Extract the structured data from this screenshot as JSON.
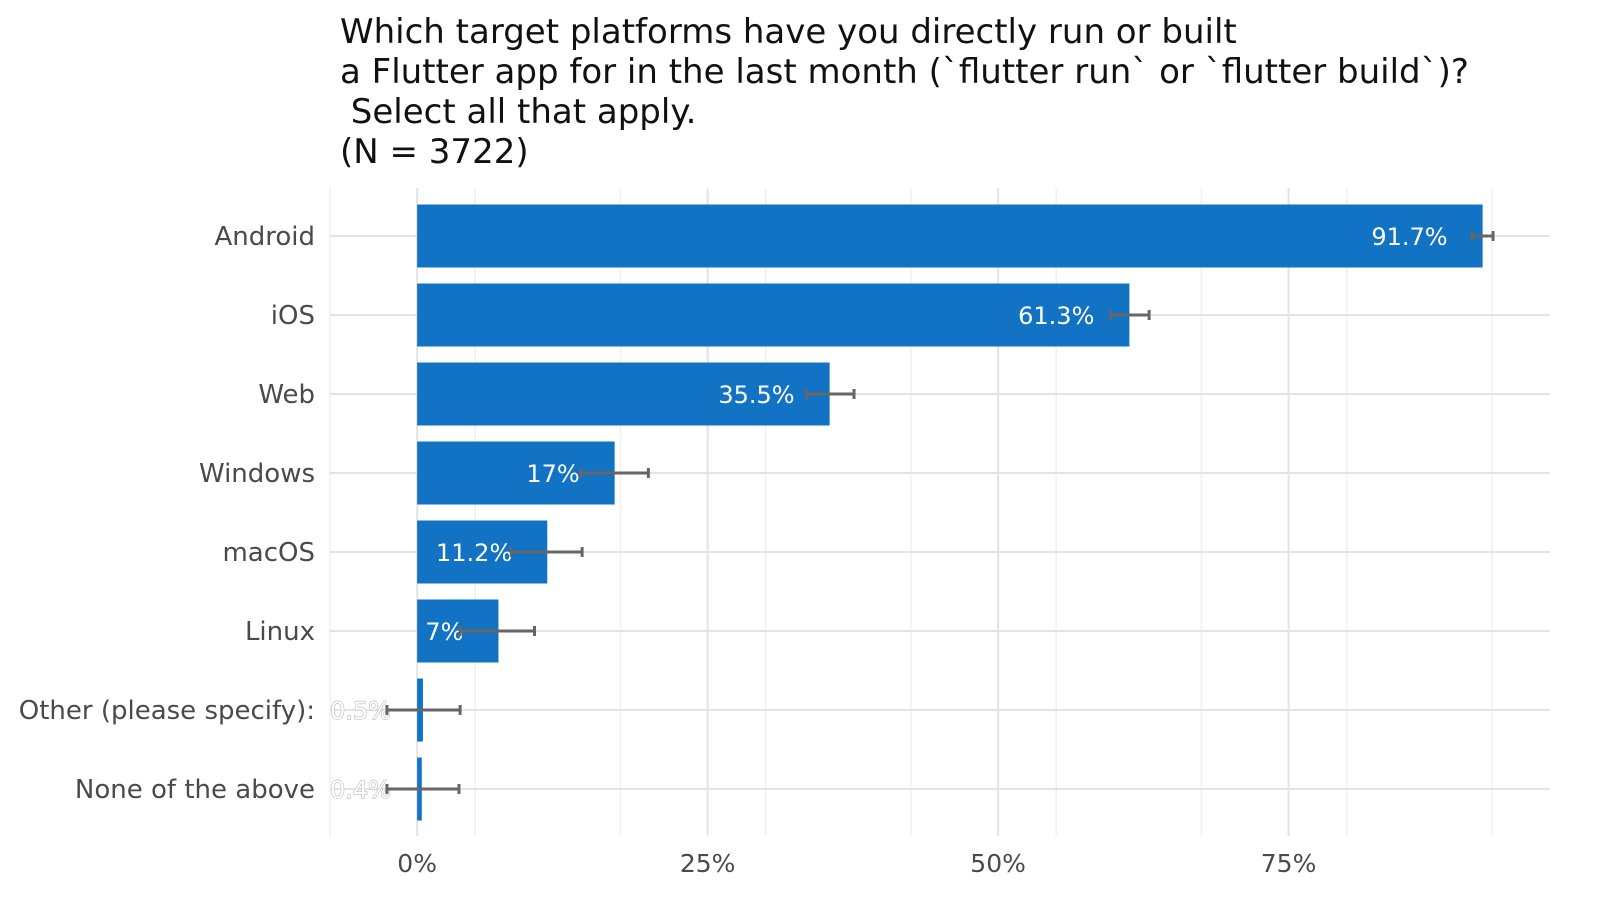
{
  "chart_data": {
    "type": "bar",
    "orientation": "horizontal",
    "title_lines": [
      "Which target platforms have you directly run or built",
      "a Flutter app for in the last month (`flutter run` or `flutter build`)?",
      " Select all that apply.",
      "(N = 3722)"
    ],
    "categories": [
      "Android",
      "iOS",
      "Web",
      "Windows",
      "macOS",
      "Linux",
      "Other (please specify):",
      "None of the above"
    ],
    "values": [
      91.7,
      61.3,
      35.5,
      17,
      11.2,
      7,
      0.5,
      0.4
    ],
    "value_labels": [
      "91.7%",
      "61.3%",
      "35.5%",
      "17%",
      "11.2%",
      "7%",
      "0.5%",
      "0.4%"
    ],
    "error_bars": [
      [
        90.8,
        92.6
      ],
      [
        59.7,
        63.0
      ],
      [
        33.5,
        37.6
      ],
      [
        14.1,
        19.9
      ],
      [
        8.1,
        14.2
      ],
      [
        3.7,
        10.1
      ],
      [
        -2.6,
        3.7
      ],
      [
        -2.6,
        3.6
      ]
    ],
    "x_ticks": [
      0,
      25,
      50,
      75
    ],
    "x_tick_labels": [
      "0%",
      "25%",
      "50%",
      "75%"
    ],
    "xlim": [
      -7.5,
      97.5
    ],
    "grid": true,
    "bar_color": "#1273c4",
    "error_bar_color": "#666666",
    "grid_color": "#e3e3e3"
  }
}
